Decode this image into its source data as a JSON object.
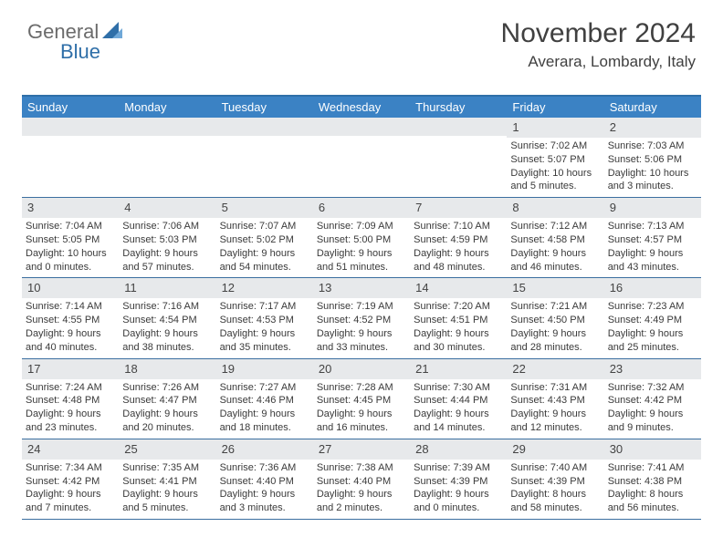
{
  "logo": {
    "part1": "General",
    "part2": "Blue"
  },
  "header": {
    "month_title": "November 2024",
    "location": "Averara, Lombardy, Italy"
  },
  "colors": {
    "accent": "#3b82c4",
    "border": "#2f6fa8",
    "daynum_bg": "#e7e9eb",
    "text": "#3a3a3a",
    "logo_gray": "#6b6b6b",
    "logo_blue": "#2f6fa8"
  },
  "day_headers": [
    "Sunday",
    "Monday",
    "Tuesday",
    "Wednesday",
    "Thursday",
    "Friday",
    "Saturday"
  ],
  "weeks": [
    [
      {
        "num": "",
        "sunrise": "",
        "sunset": "",
        "daylight1": "",
        "daylight2": ""
      },
      {
        "num": "",
        "sunrise": "",
        "sunset": "",
        "daylight1": "",
        "daylight2": ""
      },
      {
        "num": "",
        "sunrise": "",
        "sunset": "",
        "daylight1": "",
        "daylight2": ""
      },
      {
        "num": "",
        "sunrise": "",
        "sunset": "",
        "daylight1": "",
        "daylight2": ""
      },
      {
        "num": "",
        "sunrise": "",
        "sunset": "",
        "daylight1": "",
        "daylight2": ""
      },
      {
        "num": "1",
        "sunrise": "Sunrise: 7:02 AM",
        "sunset": "Sunset: 5:07 PM",
        "daylight1": "Daylight: 10 hours",
        "daylight2": "and 5 minutes."
      },
      {
        "num": "2",
        "sunrise": "Sunrise: 7:03 AM",
        "sunset": "Sunset: 5:06 PM",
        "daylight1": "Daylight: 10 hours",
        "daylight2": "and 3 minutes."
      }
    ],
    [
      {
        "num": "3",
        "sunrise": "Sunrise: 7:04 AM",
        "sunset": "Sunset: 5:05 PM",
        "daylight1": "Daylight: 10 hours",
        "daylight2": "and 0 minutes."
      },
      {
        "num": "4",
        "sunrise": "Sunrise: 7:06 AM",
        "sunset": "Sunset: 5:03 PM",
        "daylight1": "Daylight: 9 hours",
        "daylight2": "and 57 minutes."
      },
      {
        "num": "5",
        "sunrise": "Sunrise: 7:07 AM",
        "sunset": "Sunset: 5:02 PM",
        "daylight1": "Daylight: 9 hours",
        "daylight2": "and 54 minutes."
      },
      {
        "num": "6",
        "sunrise": "Sunrise: 7:09 AM",
        "sunset": "Sunset: 5:00 PM",
        "daylight1": "Daylight: 9 hours",
        "daylight2": "and 51 minutes."
      },
      {
        "num": "7",
        "sunrise": "Sunrise: 7:10 AM",
        "sunset": "Sunset: 4:59 PM",
        "daylight1": "Daylight: 9 hours",
        "daylight2": "and 48 minutes."
      },
      {
        "num": "8",
        "sunrise": "Sunrise: 7:12 AM",
        "sunset": "Sunset: 4:58 PM",
        "daylight1": "Daylight: 9 hours",
        "daylight2": "and 46 minutes."
      },
      {
        "num": "9",
        "sunrise": "Sunrise: 7:13 AM",
        "sunset": "Sunset: 4:57 PM",
        "daylight1": "Daylight: 9 hours",
        "daylight2": "and 43 minutes."
      }
    ],
    [
      {
        "num": "10",
        "sunrise": "Sunrise: 7:14 AM",
        "sunset": "Sunset: 4:55 PM",
        "daylight1": "Daylight: 9 hours",
        "daylight2": "and 40 minutes."
      },
      {
        "num": "11",
        "sunrise": "Sunrise: 7:16 AM",
        "sunset": "Sunset: 4:54 PM",
        "daylight1": "Daylight: 9 hours",
        "daylight2": "and 38 minutes."
      },
      {
        "num": "12",
        "sunrise": "Sunrise: 7:17 AM",
        "sunset": "Sunset: 4:53 PM",
        "daylight1": "Daylight: 9 hours",
        "daylight2": "and 35 minutes."
      },
      {
        "num": "13",
        "sunrise": "Sunrise: 7:19 AM",
        "sunset": "Sunset: 4:52 PM",
        "daylight1": "Daylight: 9 hours",
        "daylight2": "and 33 minutes."
      },
      {
        "num": "14",
        "sunrise": "Sunrise: 7:20 AM",
        "sunset": "Sunset: 4:51 PM",
        "daylight1": "Daylight: 9 hours",
        "daylight2": "and 30 minutes."
      },
      {
        "num": "15",
        "sunrise": "Sunrise: 7:21 AM",
        "sunset": "Sunset: 4:50 PM",
        "daylight1": "Daylight: 9 hours",
        "daylight2": "and 28 minutes."
      },
      {
        "num": "16",
        "sunrise": "Sunrise: 7:23 AM",
        "sunset": "Sunset: 4:49 PM",
        "daylight1": "Daylight: 9 hours",
        "daylight2": "and 25 minutes."
      }
    ],
    [
      {
        "num": "17",
        "sunrise": "Sunrise: 7:24 AM",
        "sunset": "Sunset: 4:48 PM",
        "daylight1": "Daylight: 9 hours",
        "daylight2": "and 23 minutes."
      },
      {
        "num": "18",
        "sunrise": "Sunrise: 7:26 AM",
        "sunset": "Sunset: 4:47 PM",
        "daylight1": "Daylight: 9 hours",
        "daylight2": "and 20 minutes."
      },
      {
        "num": "19",
        "sunrise": "Sunrise: 7:27 AM",
        "sunset": "Sunset: 4:46 PM",
        "daylight1": "Daylight: 9 hours",
        "daylight2": "and 18 minutes."
      },
      {
        "num": "20",
        "sunrise": "Sunrise: 7:28 AM",
        "sunset": "Sunset: 4:45 PM",
        "daylight1": "Daylight: 9 hours",
        "daylight2": "and 16 minutes."
      },
      {
        "num": "21",
        "sunrise": "Sunrise: 7:30 AM",
        "sunset": "Sunset: 4:44 PM",
        "daylight1": "Daylight: 9 hours",
        "daylight2": "and 14 minutes."
      },
      {
        "num": "22",
        "sunrise": "Sunrise: 7:31 AM",
        "sunset": "Sunset: 4:43 PM",
        "daylight1": "Daylight: 9 hours",
        "daylight2": "and 12 minutes."
      },
      {
        "num": "23",
        "sunrise": "Sunrise: 7:32 AM",
        "sunset": "Sunset: 4:42 PM",
        "daylight1": "Daylight: 9 hours",
        "daylight2": "and 9 minutes."
      }
    ],
    [
      {
        "num": "24",
        "sunrise": "Sunrise: 7:34 AM",
        "sunset": "Sunset: 4:42 PM",
        "daylight1": "Daylight: 9 hours",
        "daylight2": "and 7 minutes."
      },
      {
        "num": "25",
        "sunrise": "Sunrise: 7:35 AM",
        "sunset": "Sunset: 4:41 PM",
        "daylight1": "Daylight: 9 hours",
        "daylight2": "and 5 minutes."
      },
      {
        "num": "26",
        "sunrise": "Sunrise: 7:36 AM",
        "sunset": "Sunset: 4:40 PM",
        "daylight1": "Daylight: 9 hours",
        "daylight2": "and 3 minutes."
      },
      {
        "num": "27",
        "sunrise": "Sunrise: 7:38 AM",
        "sunset": "Sunset: 4:40 PM",
        "daylight1": "Daylight: 9 hours",
        "daylight2": "and 2 minutes."
      },
      {
        "num": "28",
        "sunrise": "Sunrise: 7:39 AM",
        "sunset": "Sunset: 4:39 PM",
        "daylight1": "Daylight: 9 hours",
        "daylight2": "and 0 minutes."
      },
      {
        "num": "29",
        "sunrise": "Sunrise: 7:40 AM",
        "sunset": "Sunset: 4:39 PM",
        "daylight1": "Daylight: 8 hours",
        "daylight2": "and 58 minutes."
      },
      {
        "num": "30",
        "sunrise": "Sunrise: 7:41 AM",
        "sunset": "Sunset: 4:38 PM",
        "daylight1": "Daylight: 8 hours",
        "daylight2": "and 56 minutes."
      }
    ]
  ]
}
